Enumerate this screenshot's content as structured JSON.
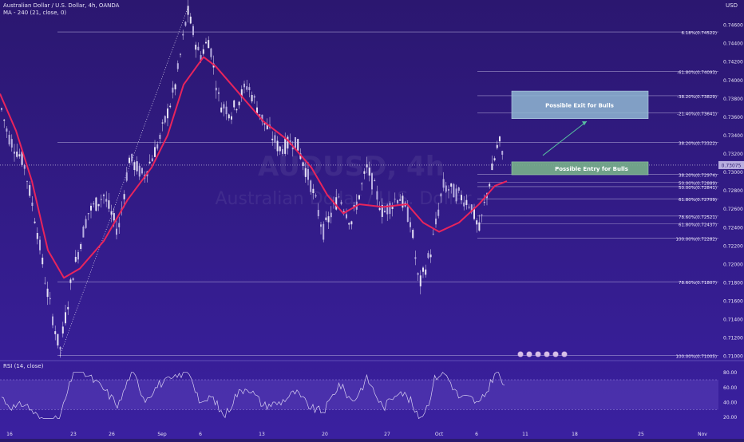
{
  "header": {
    "symbol_line": "Australian Dollar / U.S. Dollar, 4h, OANDA",
    "ma_line": "MA - 240 (21, close, 0)",
    "currency": "USD",
    "rsi_label": "RSI (14, close)",
    "watermark_symbol": "AUDUSD, 4h",
    "watermark_name": "Australian Dollar / U.S. Dollar"
  },
  "colors": {
    "background_top": "#2b1770",
    "background_bottom": "#3a20a0",
    "ma_line": "#e8245c",
    "candles": "#e6e2f5",
    "exit_box": "#8fb7d2",
    "entry_box": "#78b08a",
    "arrow": "#58c0a0",
    "fib_line": "#cfc8ea"
  },
  "annotations": {
    "exit_label": "Possible Exit for Bulls",
    "entry_label": "Possible Entry for Bulls",
    "price_tag": "0.73075"
  },
  "chart_data": {
    "type": "candlestick",
    "ylim": [
      0.7095,
      0.748
    ],
    "y_ticks": [
      "0.74600",
      "0.74400",
      "0.74200",
      "0.74000",
      "0.73800",
      "0.73600",
      "0.73400",
      "0.73200",
      "0.73000",
      "0.72800",
      "0.72600",
      "0.72400",
      "0.72200",
      "0.72000",
      "0.71800",
      "0.71600",
      "0.71400",
      "0.71200",
      "0.71000"
    ],
    "y_tick_values": [
      0.746,
      0.744,
      0.742,
      0.74,
      0.738,
      0.736,
      0.734,
      0.732,
      0.73,
      0.728,
      0.726,
      0.724,
      0.722,
      0.72,
      0.718,
      0.716,
      0.714,
      0.712,
      0.71
    ],
    "x_ticks": [
      "16",
      "23",
      "26",
      "Sep",
      "6",
      "13",
      "20",
      "27",
      "Oct",
      "6",
      "11",
      "18",
      "25",
      "Nov"
    ],
    "fib_levels": [
      {
        "label": "6.18%(0.74522)",
        "value": 0.74522
      },
      {
        "label": "-61.80%(0.74093)",
        "value": 0.74093
      },
      {
        "label": "-38.20%(0.73829)",
        "value": 0.73829
      },
      {
        "label": "-21.40%(0.73641)",
        "value": 0.73641
      },
      {
        "label": "38.20%(0.73322)",
        "value": 0.73322
      },
      {
        "label": "38.20%(0.72974)",
        "value": 0.72974
      },
      {
        "label": "50.00%(0.72889)",
        "value": 0.72889
      },
      {
        "label": "50.00%(0.72841)",
        "value": 0.72841
      },
      {
        "label": "61.80%(0.72709)",
        "value": 0.72709
      },
      {
        "label": "78.60%(0.72521)",
        "value": 0.72521
      },
      {
        "label": "61.80%(0.72437)",
        "value": 0.72437
      },
      {
        "label": "100.00%(0.72282)",
        "value": 0.72282
      },
      {
        "label": "78.60%(0.71807)",
        "value": 0.71807
      },
      {
        "label": "100.00%(0.71005)",
        "value": 0.71005
      }
    ],
    "price_path_anchors": [
      [
        0,
        0.7375
      ],
      [
        10,
        0.734
      ],
      [
        30,
        0.731
      ],
      [
        45,
        0.7245
      ],
      [
        58,
        0.7175
      ],
      [
        75,
        0.7105
      ],
      [
        90,
        0.7185
      ],
      [
        110,
        0.7255
      ],
      [
        130,
        0.7275
      ],
      [
        148,
        0.7235
      ],
      [
        162,
        0.7315
      ],
      [
        180,
        0.7295
      ],
      [
        200,
        0.7335
      ],
      [
        220,
        0.7395
      ],
      [
        235,
        0.7475
      ],
      [
        250,
        0.7425
      ],
      [
        262,
        0.7445
      ],
      [
        275,
        0.7375
      ],
      [
        290,
        0.7365
      ],
      [
        310,
        0.7395
      ],
      [
        330,
        0.7355
      ],
      [
        350,
        0.7325
      ],
      [
        370,
        0.7335
      ],
      [
        390,
        0.7285
      ],
      [
        405,
        0.7235
      ],
      [
        425,
        0.7275
      ],
      [
        440,
        0.7245
      ],
      [
        460,
        0.7305
      ],
      [
        480,
        0.7255
      ],
      [
        500,
        0.7275
      ],
      [
        515,
        0.7245
      ],
      [
        525,
        0.7175
      ],
      [
        540,
        0.7215
      ],
      [
        555,
        0.7285
      ],
      [
        575,
        0.7275
      ],
      [
        590,
        0.7265
      ],
      [
        600,
        0.7235
      ],
      [
        612,
        0.7285
      ],
      [
        625,
        0.7335
      ],
      [
        632,
        0.7305
      ]
    ],
    "ma_series": [
      [
        0,
        0.7385
      ],
      [
        20,
        0.7345
      ],
      [
        40,
        0.729
      ],
      [
        60,
        0.7215
      ],
      [
        80,
        0.7185
      ],
      [
        100,
        0.7195
      ],
      [
        130,
        0.7225
      ],
      [
        160,
        0.727
      ],
      [
        190,
        0.7305
      ],
      [
        210,
        0.734
      ],
      [
        230,
        0.7395
      ],
      [
        255,
        0.7425
      ],
      [
        270,
        0.7415
      ],
      [
        300,
        0.7385
      ],
      [
        330,
        0.7355
      ],
      [
        360,
        0.7335
      ],
      [
        390,
        0.7305
      ],
      [
        410,
        0.7275
      ],
      [
        430,
        0.7255
      ],
      [
        450,
        0.7265
      ],
      [
        480,
        0.7262
      ],
      [
        510,
        0.7265
      ],
      [
        530,
        0.7245
      ],
      [
        550,
        0.7235
      ],
      [
        575,
        0.7245
      ],
      [
        600,
        0.7265
      ],
      [
        620,
        0.7285
      ],
      [
        635,
        0.729
      ]
    ],
    "rsi": {
      "y_ticks": [
        "80.00",
        "60.00",
        "40.00",
        "20.00"
      ],
      "y_tick_values": [
        80,
        60,
        40,
        20
      ],
      "ylim": [
        10,
        85
      ],
      "bands": [
        70,
        30
      ]
    }
  }
}
